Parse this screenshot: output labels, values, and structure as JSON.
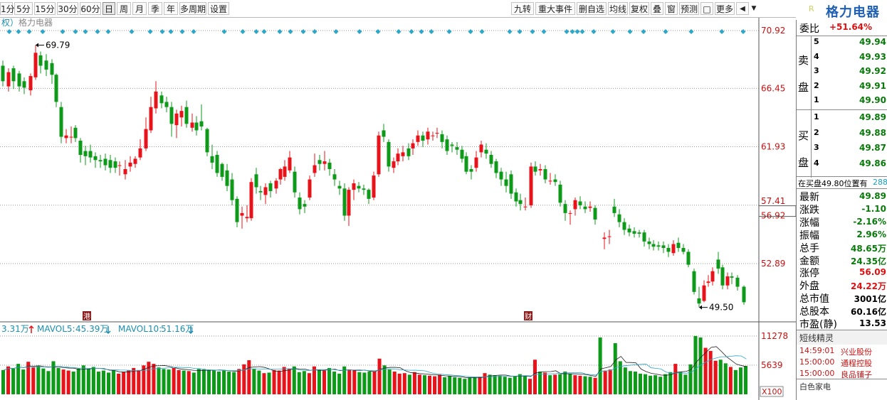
{
  "toolbar": {
    "periods": [
      "1分",
      "5分",
      "15分",
      "30分",
      "60分",
      "日",
      "周",
      "月",
      "季",
      "年",
      "多周期",
      "设置"
    ],
    "active": "日",
    "right_items": [
      "九转",
      "重大事件",
      "删自选",
      "均线",
      "复权",
      "叠",
      "窗",
      "预测"
    ],
    "more": "更多"
  },
  "stock": {
    "name": "格力电器",
    "badge": "R"
  },
  "chart": {
    "legend_left": "权）",
    "legend_name": "格力电器",
    "y_labels": [
      "70.92",
      "66.45",
      "61.93",
      "57.41",
      "56.92",
      "52.89"
    ],
    "high_label": "69.79",
    "low_label": "49.50",
    "event_marks": [
      "港",
      "财"
    ],
    "volume_legend": {
      "vol": "3.31万",
      "mavol5_label": "MAVOL5:",
      "mavol5": "45.39万",
      "mavol10_label": "MAVOL10:",
      "mavol10": "51.16万"
    },
    "vol_ticks": [
      "11278",
      "5639",
      "X100"
    ],
    "colors": {
      "up": "#e8131a",
      "down": "#0e9a19",
      "marker": "#2aa7c9"
    }
  },
  "quote": {
    "weibi_label": "委比",
    "weibi": "+51.64%",
    "sell_label": [
      "卖",
      "盘"
    ],
    "buy_label": [
      "买",
      "盘"
    ],
    "sell": [
      {
        "level": "5",
        "price": "49.94"
      },
      {
        "level": "4",
        "price": "49.93"
      },
      {
        "level": "3",
        "price": "49.92"
      },
      {
        "level": "2",
        "price": "49.91"
      },
      {
        "level": "1",
        "price": "49.90"
      }
    ],
    "buy": [
      {
        "level": "1",
        "price": "49.89"
      },
      {
        "level": "2",
        "price": "49.88"
      },
      {
        "level": "3",
        "price": "49.87"
      },
      {
        "level": "4",
        "price": "49.86"
      }
    ],
    "inline": "在买盘49.80位置有",
    "inline_val": "288",
    "stats": [
      {
        "label": "最新",
        "value": "49.89"
      },
      {
        "label": "涨跌",
        "value": "-1.10"
      },
      {
        "label": "涨幅",
        "value": "-2.16%"
      },
      {
        "label": "振幅",
        "value": "2.96%"
      },
      {
        "label": "总手",
        "value": "48.65万"
      },
      {
        "label": "金额",
        "value": "24.35亿"
      },
      {
        "label": "涨停",
        "value": "56.09"
      },
      {
        "label": "外盘",
        "value": "24.22万"
      },
      {
        "label": "总市值",
        "value": "3001亿"
      },
      {
        "label": "总股本",
        "value": "60.16亿"
      },
      {
        "label": "市盈(静)",
        "value": "13.53"
      }
    ]
  },
  "short_line": {
    "title": "短线精灵",
    "items": [
      {
        "time": "14:59:01",
        "name": "兴业股份"
      },
      {
        "time": "15:00:00",
        "name": "通程控股"
      },
      {
        "time": "15:00:00",
        "name": "良品铺子"
      }
    ],
    "footer": "白色家电"
  }
}
